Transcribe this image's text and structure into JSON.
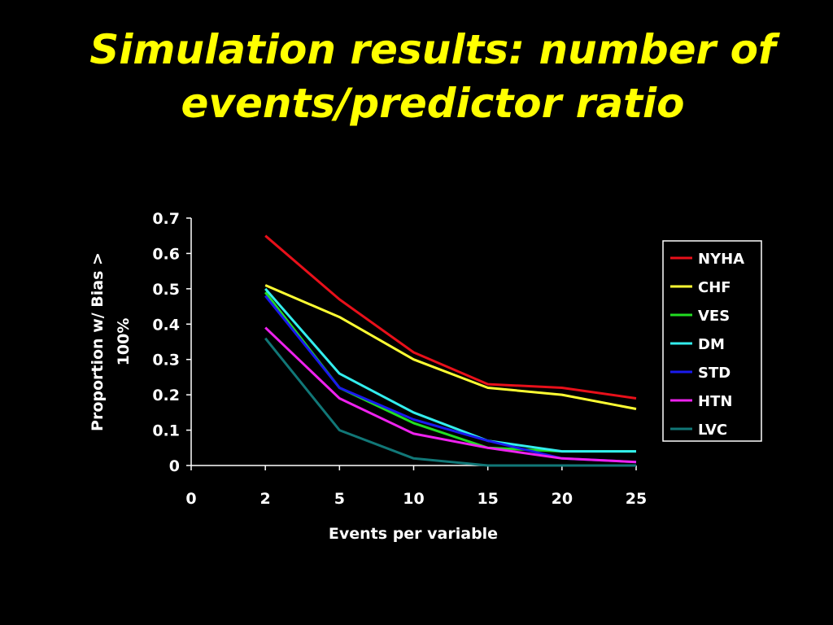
{
  "slide": {
    "title_lines": [
      "Simulation results: number of",
      "events/predictor ratio"
    ],
    "background": "#000000",
    "title_color": "#FFFF00"
  },
  "chart_data": {
    "type": "line",
    "categories": [
      "0",
      "2",
      "5",
      "10",
      "15",
      "20",
      "25"
    ],
    "xlabel": "Events per variable",
    "ylabel_lines": [
      "Proportion w/ Bias >",
      "100%"
    ],
    "ylim": [
      0,
      0.7
    ],
    "yticks": [
      "0",
      "0.1",
      "0.2",
      "0.3",
      "0.4",
      "0.5",
      "0.6",
      "0.7"
    ],
    "grid": false,
    "legend_position": "right",
    "series": [
      {
        "name": "NYHA",
        "color": "#E8101A",
        "values": [
          null,
          0.65,
          0.47,
          0.32,
          0.23,
          0.22,
          0.19
        ]
      },
      {
        "name": "CHF",
        "color": "#FFFF33",
        "values": [
          null,
          0.51,
          0.42,
          0.3,
          0.22,
          0.2,
          0.16
        ]
      },
      {
        "name": "VES",
        "color": "#22DD22",
        "values": [
          null,
          0.49,
          0.22,
          0.12,
          0.05,
          0.04,
          0.04
        ]
      },
      {
        "name": "DM",
        "color": "#33EEEE",
        "values": [
          null,
          0.5,
          0.26,
          0.15,
          0.07,
          0.04,
          0.04
        ]
      },
      {
        "name": "STD",
        "color": "#1A1AEE",
        "values": [
          null,
          0.48,
          0.22,
          0.13,
          0.07,
          0.02,
          0.01
        ]
      },
      {
        "name": "HTN",
        "color": "#EE22EE",
        "values": [
          null,
          0.39,
          0.19,
          0.09,
          0.05,
          0.02,
          0.01
        ]
      },
      {
        "name": "LVC",
        "color": "#117777",
        "values": [
          null,
          0.36,
          0.1,
          0.02,
          0.0,
          0.0,
          0.0
        ]
      }
    ]
  }
}
